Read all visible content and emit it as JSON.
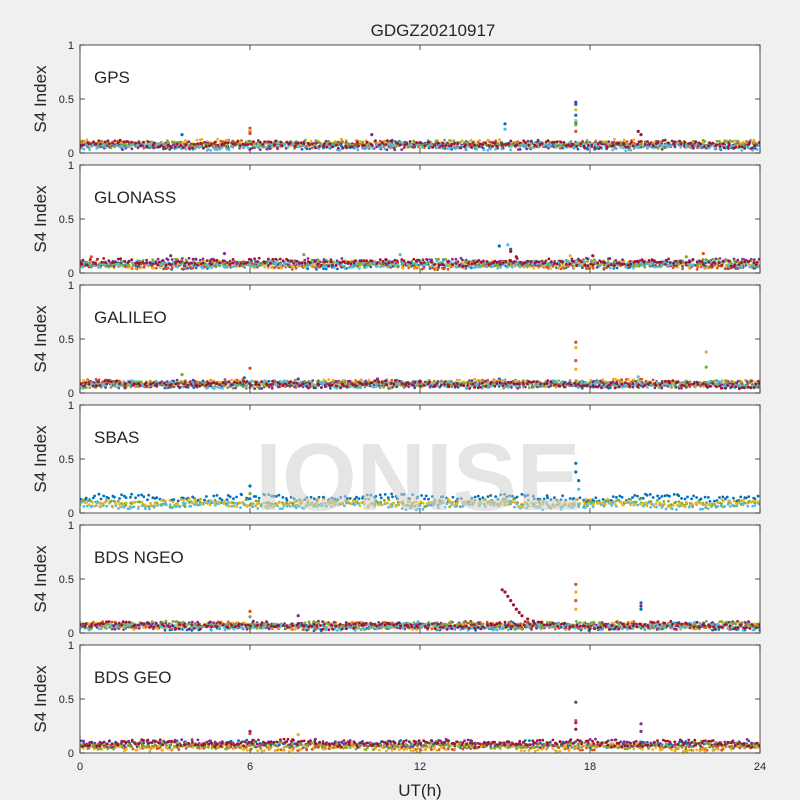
{
  "chart_data": {
    "type": "scatter",
    "title": "GDGZ20210917",
    "xlabel": "UT(h)",
    "ylabel": "S4 Index",
    "xlim": [
      0,
      24
    ],
    "ylim": [
      0,
      1
    ],
    "xticks": [
      "0",
      "6",
      "12",
      "18",
      "24"
    ],
    "yticks": [
      "0",
      "0.5",
      "1"
    ],
    "watermark": "IONISE",
    "colors": [
      "#0072BD",
      "#D95319",
      "#EDB120",
      "#7E2F8E",
      "#77AC30",
      "#4DBEEE",
      "#A2142F"
    ],
    "panels": [
      {
        "name": "GPS",
        "series": [
          {
            "color_index": 0,
            "level": 0.07,
            "points": [
              [
                3.6,
                0.17
              ],
              [
                6.0,
                0.2
              ],
              [
                15.0,
                0.27
              ],
              [
                17.5,
                0.45
              ],
              [
                17.5,
                0.35
              ],
              [
                17.5,
                0.28
              ]
            ]
          },
          {
            "color_index": 1,
            "level": 0.08,
            "points": [
              [
                6.0,
                0.23
              ],
              [
                6.0,
                0.18
              ],
              [
                17.5,
                0.2
              ]
            ]
          },
          {
            "color_index": 2,
            "level": 0.09,
            "points": [
              [
                6.0,
                0.21
              ],
              [
                17.5,
                0.4
              ],
              [
                17.5,
                0.3
              ]
            ]
          },
          {
            "color_index": 3,
            "level": 0.07,
            "points": [
              [
                10.3,
                0.17
              ],
              [
                17.5,
                0.47
              ]
            ]
          },
          {
            "color_index": 4,
            "level": 0.08,
            "points": [
              [
                17.5,
                0.26
              ]
            ]
          },
          {
            "color_index": 5,
            "level": 0.06,
            "points": [
              [
                15.0,
                0.22
              ]
            ]
          },
          {
            "color_index": 6,
            "level": 0.08,
            "points": [
              [
                19.7,
                0.2
              ],
              [
                19.8,
                0.17
              ]
            ]
          }
        ]
      },
      {
        "name": "GLONASS",
        "series": [
          {
            "color_index": 0,
            "level": 0.07,
            "points": [
              [
                14.8,
                0.25
              ],
              [
                15.2,
                0.22
              ]
            ]
          },
          {
            "color_index": 1,
            "level": 0.07,
            "points": [
              [
                0.4,
                0.15
              ],
              [
                22.0,
                0.18
              ]
            ]
          },
          {
            "color_index": 2,
            "level": 0.08,
            "points": [
              [
                17.3,
                0.16
              ]
            ]
          },
          {
            "color_index": 3,
            "level": 0.1,
            "points": [
              [
                3.2,
                0.16
              ],
              [
                5.1,
                0.18
              ]
            ]
          },
          {
            "color_index": 4,
            "level": 0.09,
            "points": [
              [
                7.9,
                0.17
              ],
              [
                21.4,
                0.15
              ]
            ]
          },
          {
            "color_index": 5,
            "level": 0.08,
            "points": [
              [
                11.3,
                0.17
              ],
              [
                15.1,
                0.26
              ]
            ]
          },
          {
            "color_index": 6,
            "level": 0.1,
            "points": [
              [
                15.2,
                0.2
              ],
              [
                15.4,
                0.15
              ],
              [
                18.1,
                0.16
              ]
            ]
          }
        ]
      },
      {
        "name": "GALILEO",
        "series": [
          {
            "color_index": 0,
            "level": 0.08,
            "points": [
              [
                5.8,
                0.14
              ],
              [
                14.8,
                0.13
              ]
            ]
          },
          {
            "color_index": 1,
            "level": 0.09,
            "points": [
              [
                6.0,
                0.23
              ],
              [
                17.5,
                0.47
              ],
              [
                17.5,
                0.3
              ]
            ]
          },
          {
            "color_index": 2,
            "level": 0.09,
            "points": [
              [
                17.5,
                0.42
              ],
              [
                17.5,
                0.22
              ],
              [
                22.1,
                0.38
              ]
            ]
          },
          {
            "color_index": 3,
            "level": 0.08,
            "points": [
              [
                7.7,
                0.13
              ],
              [
                10.5,
                0.13
              ]
            ]
          },
          {
            "color_index": 4,
            "level": 0.08,
            "points": [
              [
                3.6,
                0.17
              ],
              [
                22.1,
                0.24
              ]
            ]
          },
          {
            "color_index": 5,
            "level": 0.08,
            "points": [
              [
                15.0,
                0.12
              ],
              [
                19.7,
                0.15
              ]
            ]
          },
          {
            "color_index": 6,
            "level": 0.08,
            "points": [
              [
                12.0,
                0.11
              ]
            ]
          }
        ]
      },
      {
        "name": "SBAS",
        "series": [
          {
            "color_index": 0,
            "level": 0.14,
            "points": [
              [
                6.0,
                0.25
              ],
              [
                17.5,
                0.46
              ],
              [
                17.5,
                0.38
              ],
              [
                17.6,
                0.3
              ]
            ]
          },
          {
            "color_index": 4,
            "level": 0.09,
            "points": [
              [
                6.0,
                0.18
              ]
            ]
          },
          {
            "color_index": 5,
            "level": 0.07,
            "points": [
              [
                17.6,
                0.22
              ]
            ]
          },
          {
            "color_index": 2,
            "level": 0.09,
            "points": []
          }
        ]
      },
      {
        "name": "BDS NGEO",
        "series": [
          {
            "color_index": 0,
            "level": 0.06,
            "points": [
              [
                19.8,
                0.28
              ],
              [
                19.8,
                0.22
              ]
            ]
          },
          {
            "color_index": 1,
            "level": 0.07,
            "points": [
              [
                6.0,
                0.2
              ],
              [
                17.5,
                0.45
              ],
              [
                17.5,
                0.3
              ]
            ]
          },
          {
            "color_index": 2,
            "level": 0.07,
            "points": [
              [
                17.5,
                0.38
              ],
              [
                17.5,
                0.22
              ]
            ]
          },
          {
            "color_index": 3,
            "level": 0.07,
            "points": [
              [
                7.7,
                0.16
              ],
              [
                19.8,
                0.25
              ]
            ]
          },
          {
            "color_index": 4,
            "level": 0.07,
            "points": [
              [
                6.0,
                0.15
              ]
            ]
          },
          {
            "color_index": 5,
            "level": 0.06,
            "points": []
          },
          {
            "color_index": 6,
            "level": 0.07,
            "points": [
              [
                14.9,
                0.4
              ],
              [
                15.0,
                0.38
              ],
              [
                15.1,
                0.34
              ],
              [
                15.2,
                0.3
              ],
              [
                15.3,
                0.26
              ],
              [
                15.4,
                0.22
              ],
              [
                15.5,
                0.19
              ],
              [
                15.6,
                0.16
              ],
              [
                15.8,
                0.13
              ],
              [
                16.0,
                0.11
              ],
              [
                16.3,
                0.1
              ]
            ]
          }
        ]
      },
      {
        "name": "BDS GEO",
        "series": [
          {
            "color_index": 0,
            "level": 0.08,
            "points": []
          },
          {
            "color_index": 1,
            "level": 0.06,
            "points": [
              [
                6.0,
                0.18
              ],
              [
                17.5,
                0.3
              ]
            ]
          },
          {
            "color_index": 2,
            "level": 0.05,
            "points": [
              [
                7.7,
                0.17
              ]
            ]
          },
          {
            "color_index": 3,
            "level": 0.09,
            "points": [
              [
                6.0,
                0.2
              ],
              [
                17.5,
                0.47
              ],
              [
                17.5,
                0.28
              ],
              [
                19.8,
                0.27
              ],
              [
                19.8,
                0.2
              ]
            ]
          },
          {
            "color_index": 4,
            "level": 0.07,
            "points": []
          },
          {
            "color_index": 6,
            "level": 0.09,
            "points": [
              [
                17.5,
                0.22
              ]
            ]
          }
        ]
      }
    ]
  }
}
